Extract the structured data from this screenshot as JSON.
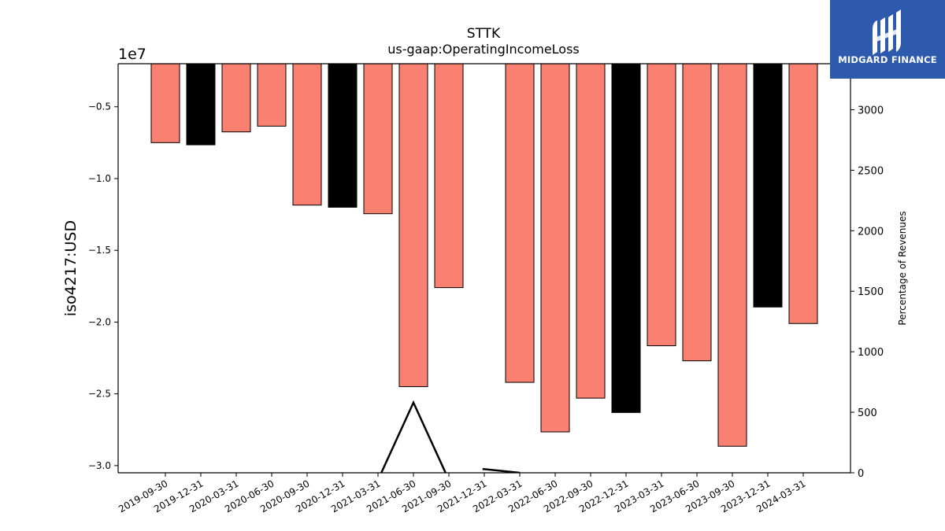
{
  "colors": {
    "bar_default": "#fa8072",
    "bar_highlight": "#000000",
    "line": "#000000",
    "logo_bg": "#2d5aad"
  },
  "logo": {
    "text": "MIDGARD FINANCE",
    "icon": "midgard-logo-icon"
  },
  "chart_data": {
    "type": "bar",
    "title": "STTK",
    "subtitle": "us-gaap:OperatingIncomeLoss",
    "ylabel": "iso4217:USD",
    "y_offset_label": "1e7",
    "y2label": "Percentage of Revenues",
    "ylim": [
      -30500000,
      -2000000
    ],
    "y_ticks": [
      -5000000,
      -10000000,
      -15000000,
      -20000000,
      -25000000,
      -30000000
    ],
    "y_tick_labels": [
      "−0.5",
      "−1.0",
      "−1.5",
      "−2.0",
      "−2.5",
      "−3.0"
    ],
    "y2lim": [
      0,
      3380
    ],
    "y2_ticks": [
      0,
      500,
      1000,
      1500,
      2000,
      2500,
      3000
    ],
    "y2_tick_labels": [
      "0",
      "500",
      "1000",
      "1500",
      "2000",
      "2500",
      "3000"
    ],
    "categories": [
      "2019-09-30",
      "2019-12-31",
      "2020-03-31",
      "2020-06-30",
      "2020-09-30",
      "2020-12-31",
      "2021-03-31",
      "2021-06-30",
      "2021-09-30",
      "2021-12-31",
      "2022-03-31",
      "2022-06-30",
      "2022-09-30",
      "2022-12-31",
      "2023-03-31",
      "2023-06-30",
      "2023-09-30",
      "2023-12-31",
      "2024-03-31"
    ],
    "series": [
      {
        "type": "bar",
        "axis": "left",
        "values": [
          -7500000,
          -7650000,
          -6750000,
          -6350000,
          -11850000,
          -12000000,
          -12450000,
          -24500000,
          -17600000,
          null,
          -24200000,
          -27650000,
          -25300000,
          -26300000,
          -21650000,
          -22700000,
          -28650000,
          -18950000,
          -20100000
        ],
        "highlighted": [
          false,
          true,
          false,
          false,
          false,
          true,
          false,
          false,
          false,
          false,
          false,
          false,
          false,
          true,
          false,
          false,
          false,
          true,
          false
        ]
      },
      {
        "type": "line",
        "axis": "right",
        "values": [
          null,
          null,
          null,
          null,
          null,
          null,
          -60,
          580,
          -60,
          null,
          0,
          null,
          null,
          null,
          null,
          null,
          null,
          null,
          null
        ],
        "segments": [
          [
            [
              6,
              -60
            ],
            [
              7,
              580
            ],
            [
              8,
              -60
            ]
          ],
          [
            [
              8.95,
              30
            ],
            [
              9,
              30
            ],
            [
              10,
              0
            ]
          ]
        ]
      }
    ],
    "grid": false,
    "legend": "none"
  }
}
